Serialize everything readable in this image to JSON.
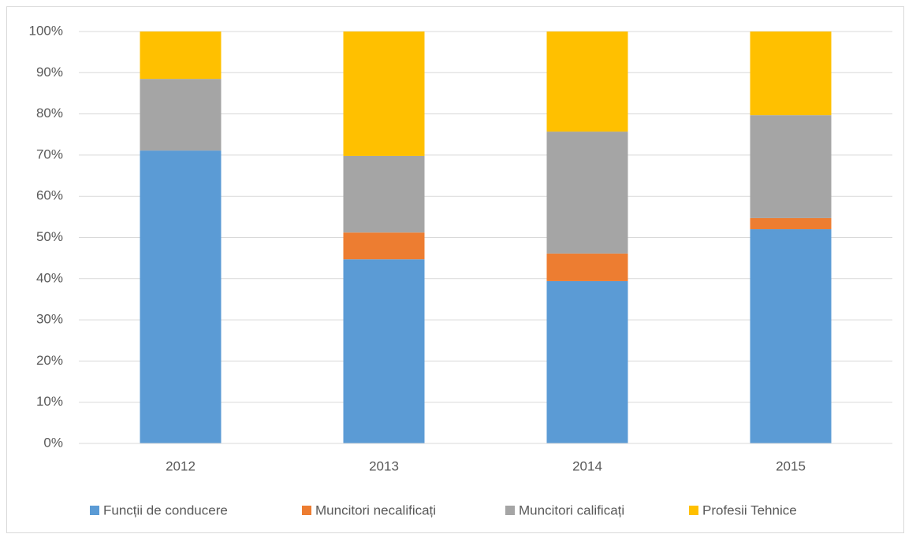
{
  "chart_data": {
    "type": "stacked_bar",
    "categories": [
      "2012",
      "2013",
      "2014",
      "2015"
    ],
    "series": [
      {
        "name": "Funcții de conducere",
        "color": "#5b9bd5",
        "values": [
          71.1,
          44.7,
          39.4,
          52.0
        ]
      },
      {
        "name": "Muncitori necalificați",
        "color": "#ed7d31",
        "values": [
          0,
          6.5,
          6.7,
          2.7
        ]
      },
      {
        "name": "Muncitori calificați",
        "color": "#a5a5a5",
        "values": [
          17.4,
          18.6,
          29.6,
          25.0
        ]
      },
      {
        "name": "Profesii Tehnice",
        "color": "#ffc000",
        "values": [
          11.5,
          30.2,
          24.3,
          20.3
        ]
      }
    ],
    "ylim": [
      0,
      100
    ],
    "yticks": [
      {
        "value": 0,
        "label": "0%"
      },
      {
        "value": 10,
        "label": "10%"
      },
      {
        "value": 20,
        "label": "20%"
      },
      {
        "value": 30,
        "label": "30%"
      },
      {
        "value": 40,
        "label": "40%"
      },
      {
        "value": 50,
        "label": "50%"
      },
      {
        "value": 60,
        "label": "60%"
      },
      {
        "value": 70,
        "label": "70%"
      },
      {
        "value": 80,
        "label": "80%"
      },
      {
        "value": 90,
        "label": "90%"
      },
      {
        "value": 100,
        "label": "100%"
      }
    ],
    "grid": true,
    "legend": "bottom"
  }
}
